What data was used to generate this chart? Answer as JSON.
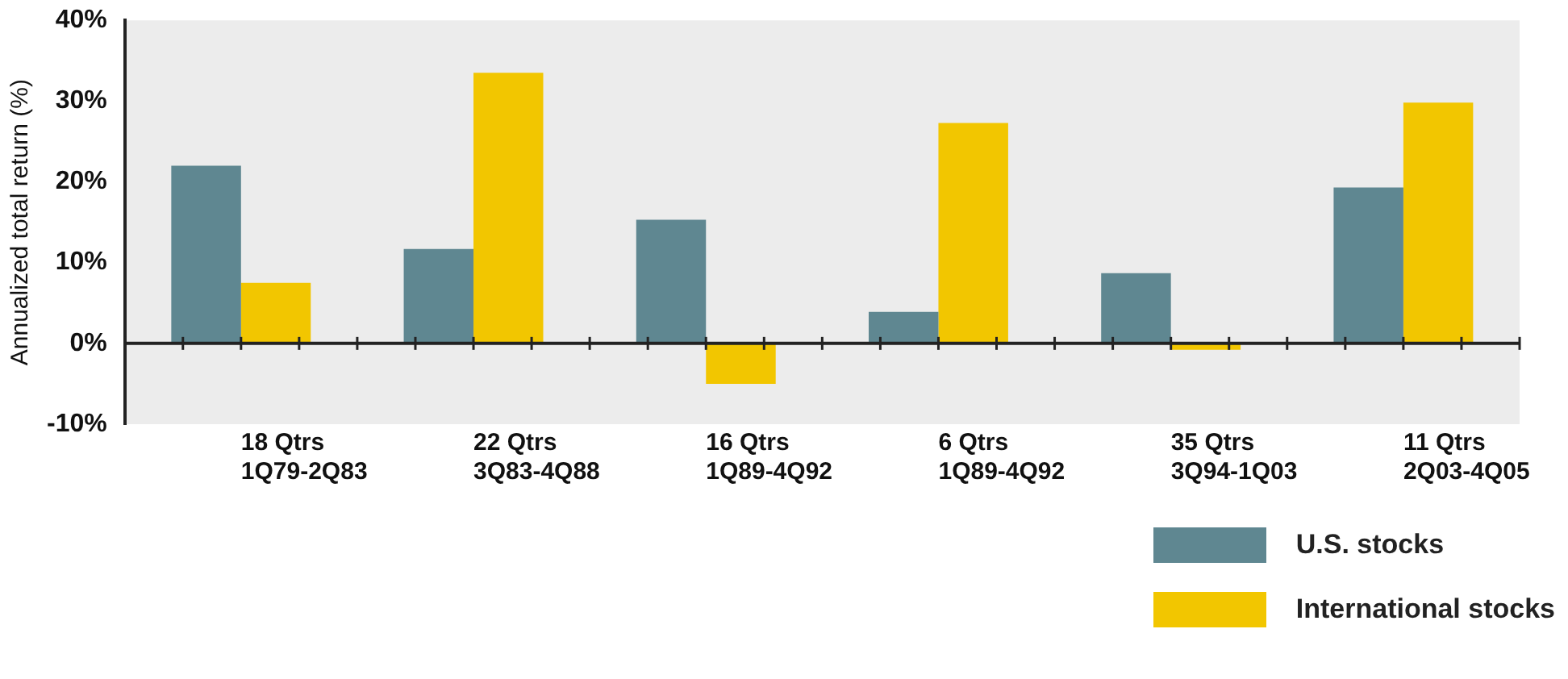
{
  "chart_data": {
    "type": "bar",
    "ylabel": "Annualized total return (%)",
    "categories": [
      "18 Qtrs\n1Q79-2Q83",
      "22 Qtrs\n3Q83-4Q88",
      "16 Qtrs\n1Q89-4Q92",
      "6 Qtrs\n1Q89-4Q92",
      "35 Qtrs\n3Q94-1Q03",
      "11 Qtrs\n2Q03-4Q05"
    ],
    "series": [
      {
        "name": "U.S. stocks",
        "color": "#5f8791",
        "values": [
          22,
          11.7,
          15.3,
          3.9,
          8.7,
          19.3
        ]
      },
      {
        "name": "International stocks",
        "color": "#f2c600",
        "values": [
          7.5,
          33.5,
          -5,
          27.3,
          -0.8,
          29.8
        ]
      }
    ],
    "ylim": [
      -10,
      40
    ],
    "yticks": [
      {
        "value": -10,
        "label": "-10%"
      },
      {
        "value": 0,
        "label": "0%"
      },
      {
        "value": 10,
        "label": "10%"
      },
      {
        "value": 20,
        "label": "20%"
      },
      {
        "value": 30,
        "label": "30%"
      },
      {
        "value": 40,
        "label": "40%"
      }
    ],
    "ref_lines": [
      {
        "axis": "y",
        "value": 0,
        "color": "#222222"
      }
    ],
    "grid": false,
    "legend": "bottom right"
  }
}
